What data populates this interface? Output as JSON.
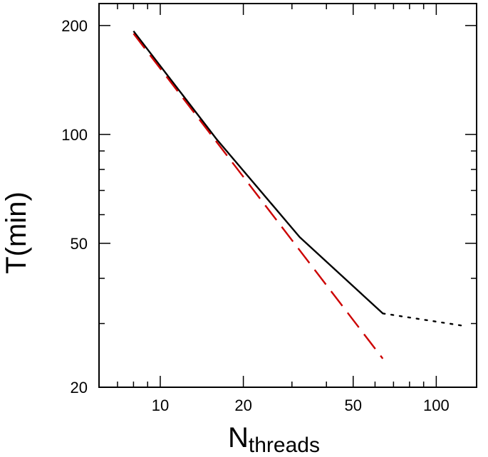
{
  "chart_data": {
    "type": "line",
    "xlabel": "N",
    "xlabel_subscript": "threads",
    "ylabel": "T(min)",
    "xscale": "log",
    "yscale": "log",
    "xlim": [
      6,
      140
    ],
    "ylim": [
      20,
      230
    ],
    "grid": false,
    "legend": "none",
    "x_ticks": [
      10,
      20,
      50,
      100
    ],
    "x_tick_labels": [
      "10",
      "20",
      "50",
      "100"
    ],
    "y_ticks": [
      20,
      50,
      100,
      200
    ],
    "y_tick_labels": [
      "20",
      "50",
      "100",
      "200"
    ],
    "series": [
      {
        "style": "solid",
        "color": "#000000",
        "x": [
          8,
          16,
          32,
          64
        ],
        "y": [
          193,
          97,
          52,
          32
        ]
      },
      {
        "style": "dotted",
        "color": "#000000",
        "x": [
          64,
          128
        ],
        "y": [
          32,
          29.5
        ]
      },
      {
        "style": "dashed",
        "color": "#cc0000",
        "x": [
          8,
          64
        ],
        "y": [
          190,
          24
        ]
      }
    ]
  }
}
